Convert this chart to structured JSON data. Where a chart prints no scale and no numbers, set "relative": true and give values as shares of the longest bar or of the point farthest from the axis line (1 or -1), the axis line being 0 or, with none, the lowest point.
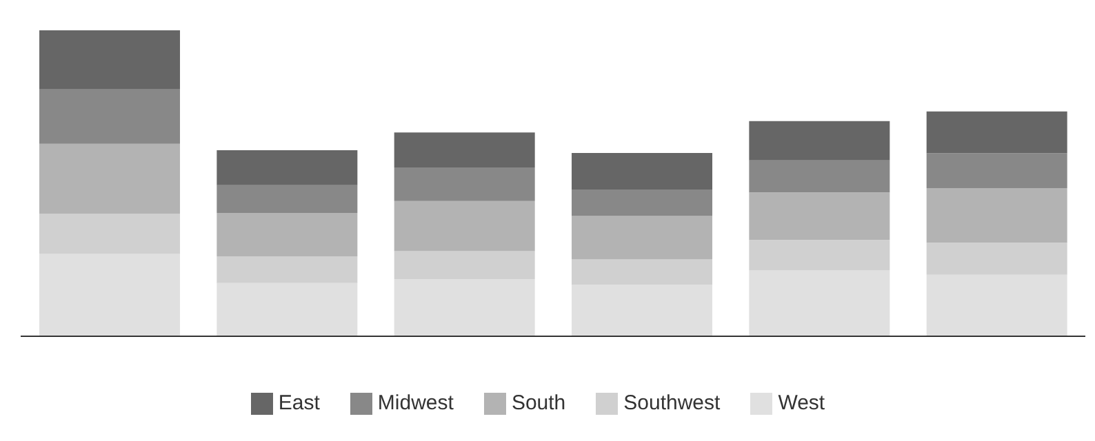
{
  "chart_data": {
    "type": "bar",
    "stacked": true,
    "relative": true,
    "categories": [
      null,
      null,
      null,
      null,
      null,
      null
    ],
    "legend": "bottom",
    "grid": false,
    "series": [
      {
        "name": "West",
        "color": "#e0e0e0",
        "values": [
          0.269,
          0.174,
          0.187,
          0.169,
          0.215,
          0.201
        ]
      },
      {
        "name": "Southwest",
        "color": "#d0d0d0",
        "values": [
          0.132,
          0.087,
          0.091,
          0.082,
          0.1,
          0.105
        ]
      },
      {
        "name": "South",
        "color": "#b3b3b3",
        "values": [
          0.228,
          0.142,
          0.164,
          0.142,
          0.155,
          0.178
        ]
      },
      {
        "name": "Midwest",
        "color": "#888888",
        "values": [
          0.178,
          0.091,
          0.11,
          0.087,
          0.105,
          0.114
        ]
      },
      {
        "name": "East",
        "color": "#666666",
        "values": [
          0.193,
          0.114,
          0.114,
          0.119,
          0.128,
          0.137
        ]
      }
    ]
  }
}
